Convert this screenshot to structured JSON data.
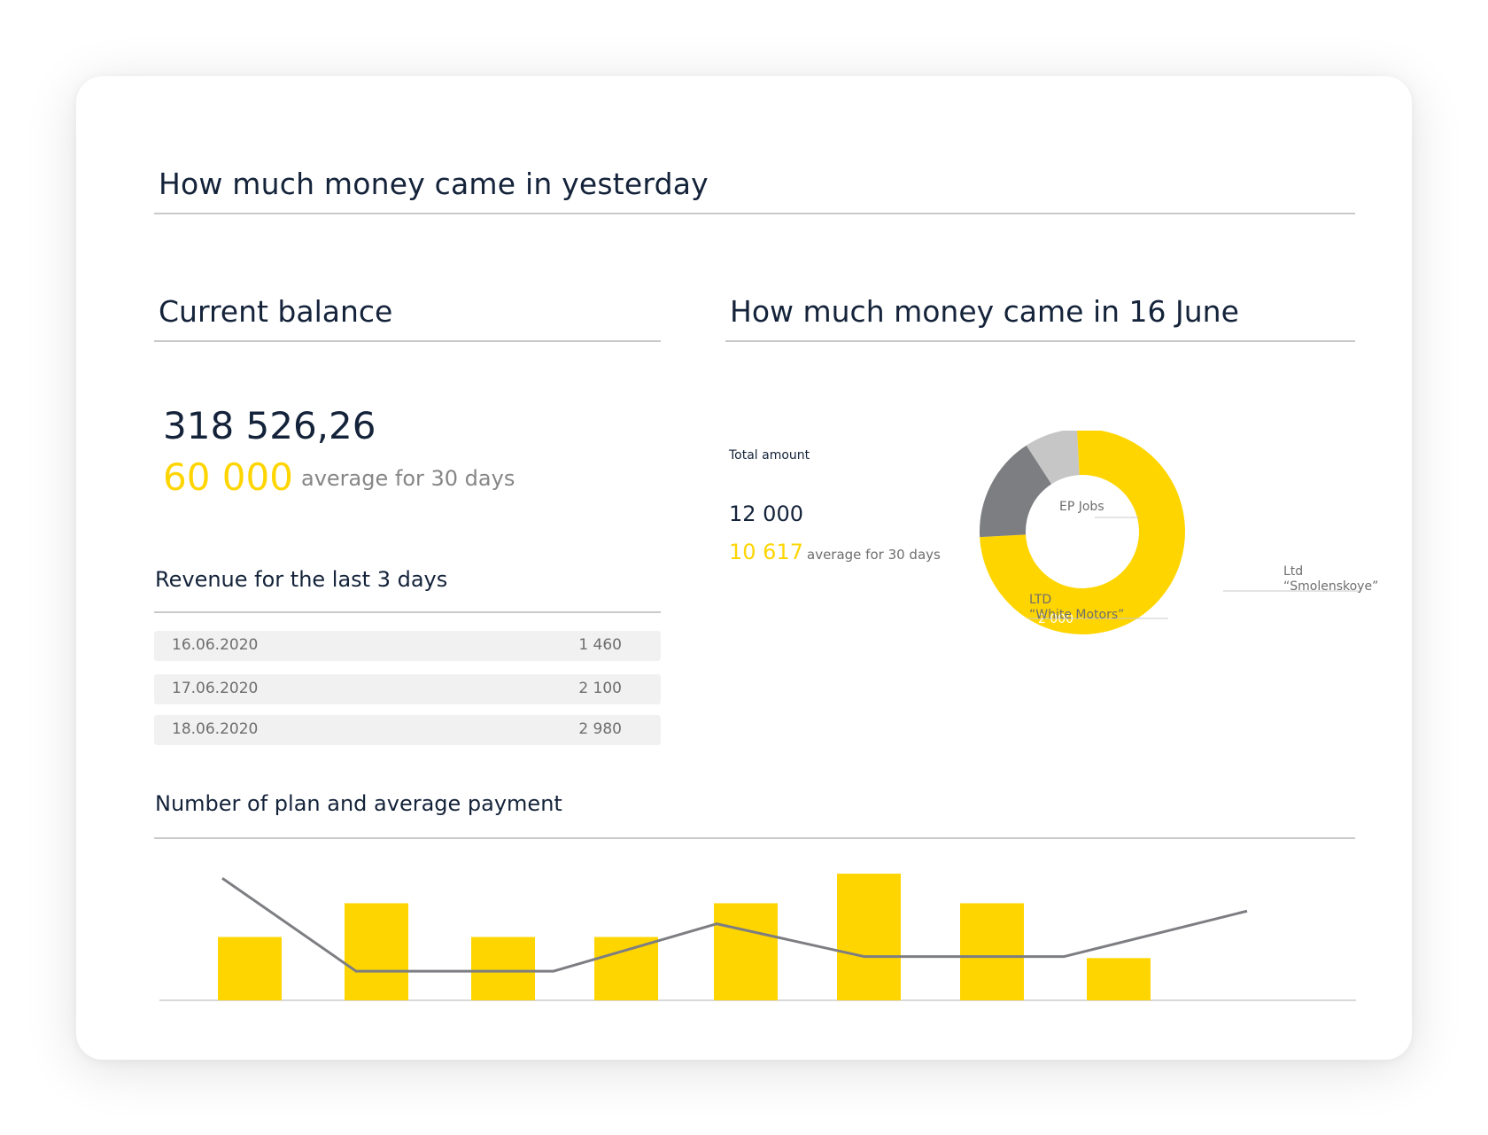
{
  "header": {
    "title": "How much money came in yesterday"
  },
  "balance": {
    "title": "Current balance",
    "amount": "318 526,26",
    "average_value": "60 000",
    "average_label": "average for 30 days"
  },
  "revenue": {
    "title": "Revenue for the last 3 days",
    "rows": [
      {
        "date": "16.06.2020",
        "value": "1 460"
      },
      {
        "date": "17.06.2020",
        "value": "2 100"
      },
      {
        "date": "18.06.2020",
        "value": "2 980"
      }
    ]
  },
  "june": {
    "title": "How much money came in 16 June",
    "total_label": "Total amount",
    "total_value": "12 000",
    "average_value": "10 617",
    "average_label": "average for 30 days"
  },
  "plan": {
    "title": "Number of plan and average payment"
  },
  "colors": {
    "accent": "#ffd500",
    "dark": "#14233a",
    "grey": "#7d7e82",
    "light_grey": "#c6c6c6"
  },
  "chart_data": [
    {
      "type": "pie",
      "subtype": "donut",
      "slices": [
        {
          "label": "Ltd “Smolenskoye”",
          "label_lines": [
            "Ltd",
            "“Smolenskoye”"
          ],
          "value": 9000,
          "value_label": "9 000",
          "color": "#ffd500"
        },
        {
          "label": "LTD “White Motors”",
          "label_lines": [
            "LTD",
            "“White Motors”"
          ],
          "value": 2000,
          "value_label": "2 000",
          "color": "#7d7e82"
        },
        {
          "label": "EP Jobs",
          "label_lines": [
            "EP Jobs"
          ],
          "value": 1000,
          "value_label": "1 000",
          "color": "#c6c6c6"
        }
      ]
    },
    {
      "type": "bar",
      "bars": [
        3,
        4.6,
        3,
        3,
        4.6,
        6,
        4.6,
        2
      ],
      "line": [
        6.7,
        1.6,
        1.6,
        1.6,
        4.2,
        2.4,
        2.4,
        2.4,
        4.9
      ],
      "ylim": [
        0,
        6.7
      ]
    }
  ]
}
